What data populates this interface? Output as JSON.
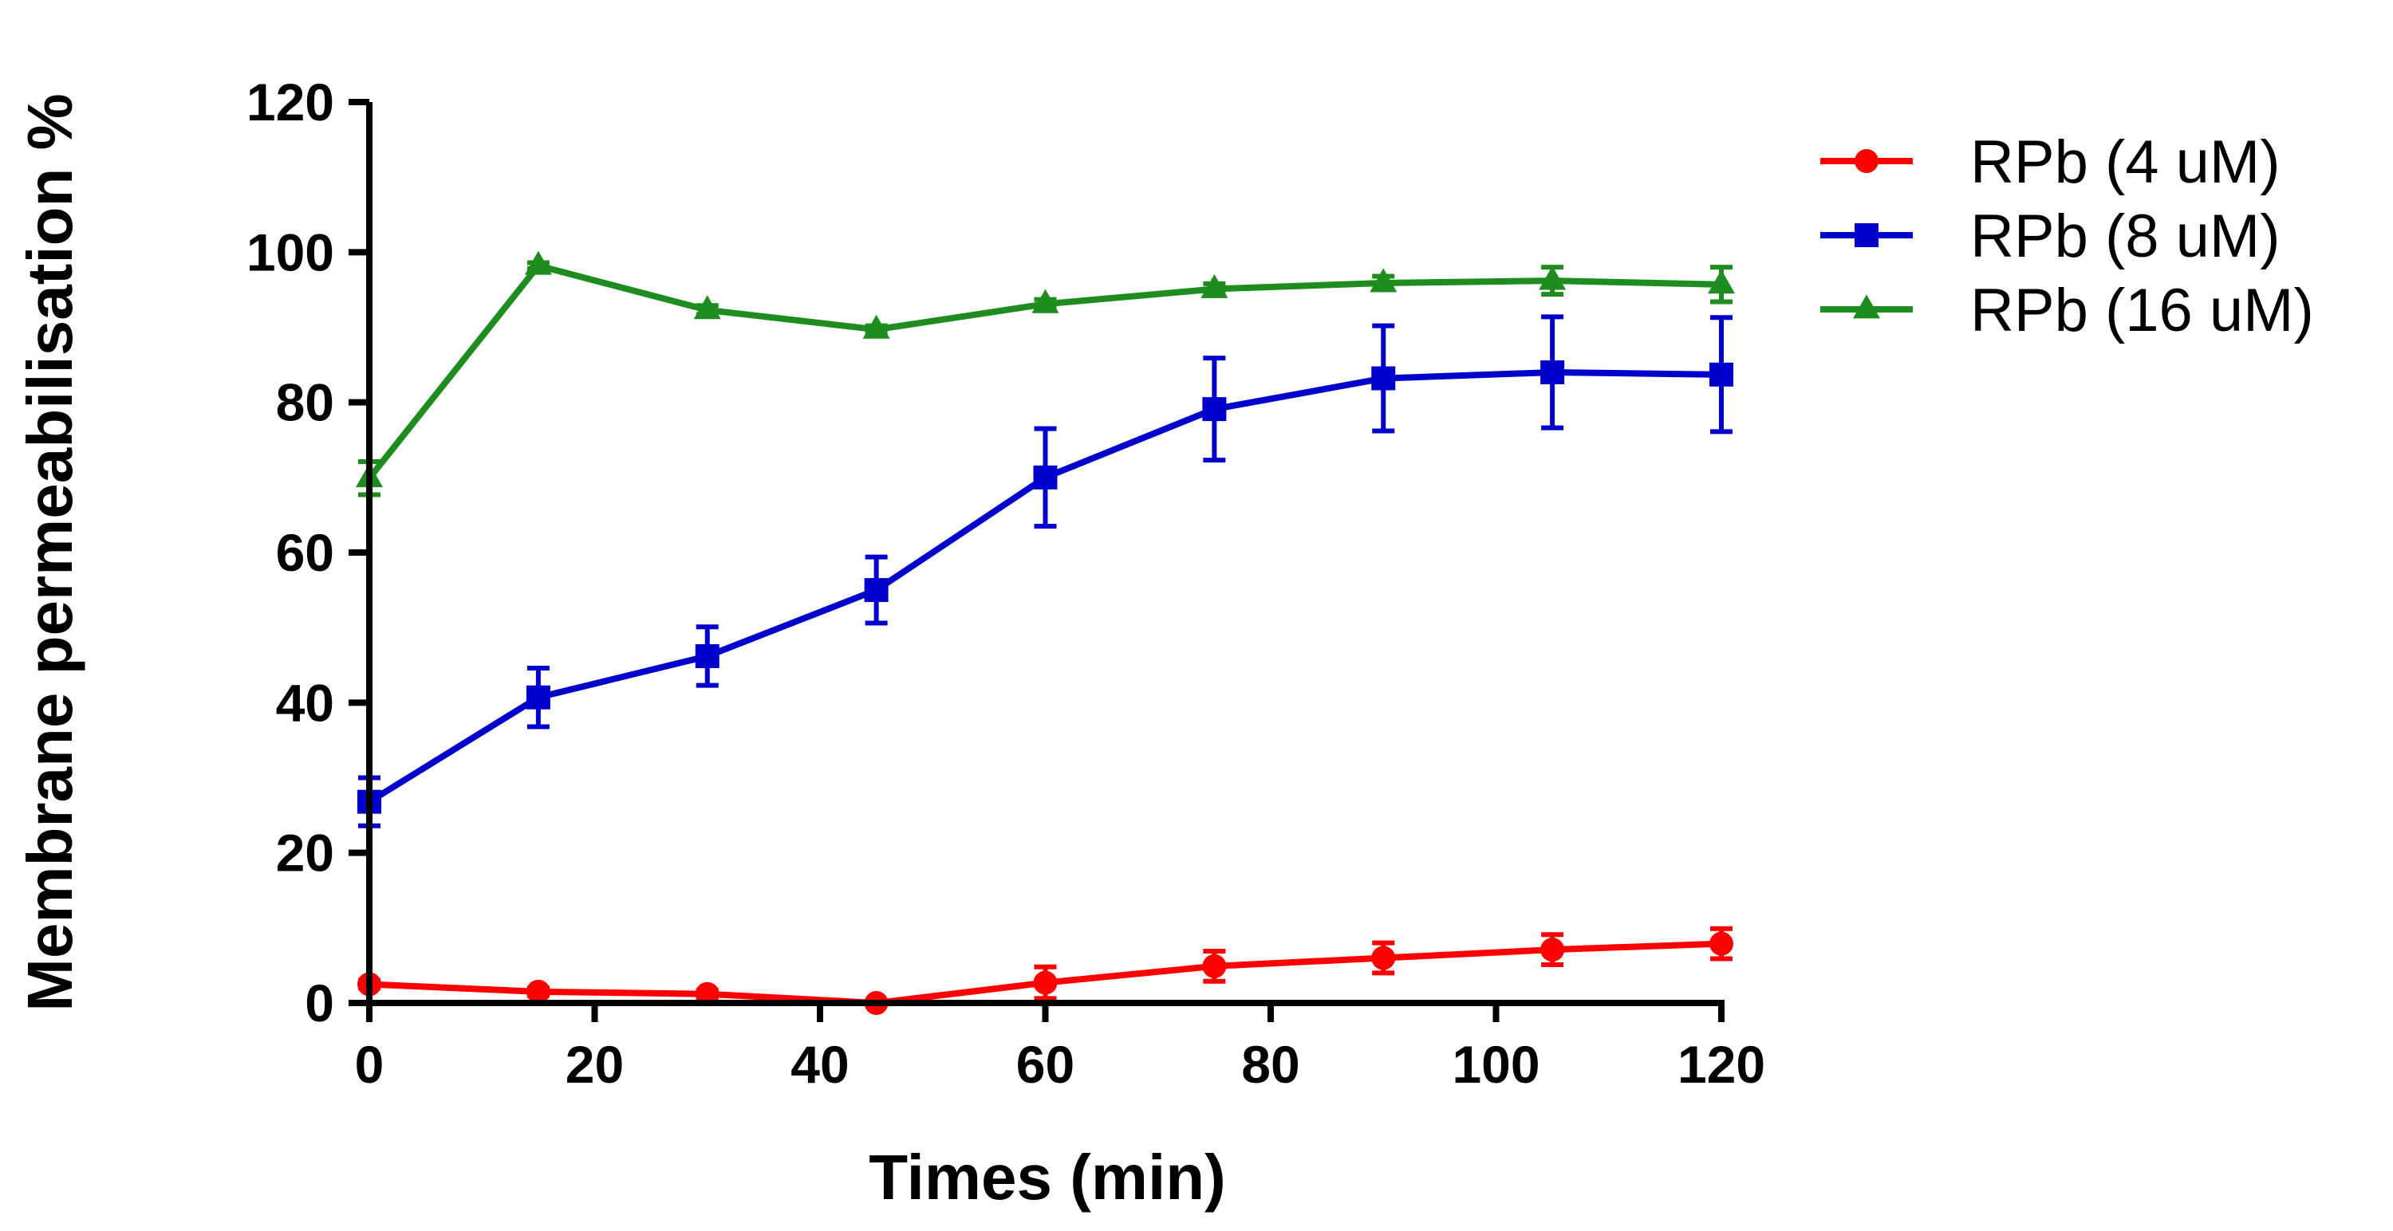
{
  "chart_data": {
    "type": "line",
    "title": "",
    "xlabel": "Times (min)",
    "ylabel": "Membrane permeabilisation %",
    "xlim": [
      0,
      120
    ],
    "ylim": [
      0,
      120
    ],
    "xticks": [
      "0",
      "20",
      "40",
      "60",
      "80",
      "100",
      "120"
    ],
    "yticks": [
      "0",
      "20",
      "40",
      "60",
      "80",
      "100",
      "120"
    ],
    "grid": false,
    "legend_position": "top-right outside",
    "x": [
      0,
      15,
      30,
      45,
      60,
      75,
      90,
      105,
      120
    ],
    "series": [
      {
        "name": "RPb (4 uM)",
        "color": "#ff0000",
        "marker": "circle",
        "values": [
          2.5,
          1.5,
          1.2,
          0,
          2.7,
          4.9,
          6.0,
          7.1,
          7.9
        ],
        "errors": [
          0.5,
          0.5,
          0.5,
          0,
          2.1,
          2.0,
          2.0,
          2.0,
          2.0
        ]
      },
      {
        "name": "RPb (8 uM)",
        "color": "#0000cc",
        "marker": "square",
        "values": [
          26.8,
          40.7,
          46.2,
          55.0,
          70.0,
          79.1,
          83.2,
          84.0,
          83.7
        ],
        "errors": [
          3.2,
          3.9,
          3.9,
          4.4,
          6.5,
          6.8,
          7.0,
          7.4,
          7.6
        ]
      },
      {
        "name": "RPb (16 uM)",
        "color": "#1e8c1e",
        "marker": "triangle",
        "values": [
          69.9,
          98.2,
          92.3,
          89.7,
          93.1,
          95.1,
          95.9,
          96.2,
          95.7
        ],
        "errors": [
          2.2,
          0.4,
          0.6,
          0.5,
          0.6,
          0.7,
          0.9,
          1.8,
          2.3
        ]
      }
    ]
  }
}
